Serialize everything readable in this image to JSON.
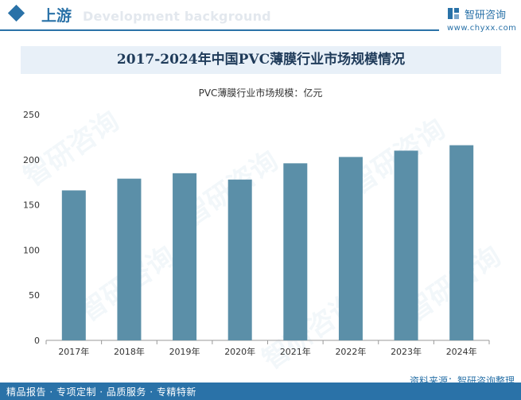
{
  "header": {
    "section_title": "上游",
    "section_subtitle": "Development background",
    "logo_name": "智研咨询",
    "logo_url": "www.chyxx.com"
  },
  "chart_data": {
    "type": "bar",
    "title": "2017-2024年中国PVC薄膜行业市场规模情况",
    "ylabel": "PVC薄膜行业市场规模：亿元",
    "xlabel": "",
    "categories": [
      "2017年",
      "2018年",
      "2019年",
      "2020年",
      "2021年",
      "2022年",
      "2023年",
      "2024年"
    ],
    "values": [
      166,
      179,
      185,
      178,
      196,
      203,
      210,
      216
    ],
    "ylim": [
      0,
      250
    ],
    "yticks": [
      0,
      50,
      100,
      150,
      200,
      250
    ],
    "bar_color": "#5b8fa8",
    "legend": "none",
    "grid": false
  },
  "footer": {
    "source": "资料来源：智研咨询整理",
    "slogan": "精品报告 · 专项定制 · 品质服务 · 专精特新"
  },
  "colors": {
    "brand": "#2a72a8",
    "title_bg": "#e8f0f8"
  }
}
